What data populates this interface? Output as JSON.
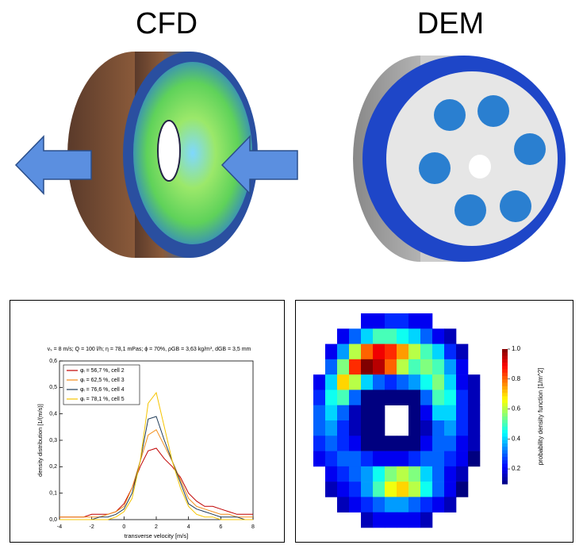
{
  "panels": [
    {
      "label": "CFD"
    },
    {
      "label": "DEM"
    }
  ],
  "chart_data": [
    {
      "type": "line",
      "title": "vₛ = 8 m/s; Q = 100 l/h; η = 78,1 mPas; ϕ = 70%, ρGB = 3,63 kg/m³, dGB = 3,5 mm",
      "x_label": "transverse velocity [m/s]",
      "y_label": "density distribution [1/(m/s)]",
      "x": [
        -4,
        -3.5,
        -3,
        -2.5,
        -2,
        -1.5,
        -1,
        -0.5,
        0,
        0.5,
        1,
        1.5,
        2,
        2.5,
        3,
        3.5,
        4,
        4.5,
        5,
        5.5,
        6,
        6.5,
        7,
        7.5,
        8
      ],
      "series": [
        {
          "name": "φᵢ = 56,7 %, cell 2",
          "color": "#c00000",
          "values": [
            0.01,
            0.01,
            0.01,
            0.01,
            0.02,
            0.02,
            0.02,
            0.03,
            0.06,
            0.12,
            0.2,
            0.26,
            0.27,
            0.23,
            0.2,
            0.16,
            0.1,
            0.07,
            0.05,
            0.05,
            0.04,
            0.03,
            0.02,
            0.02,
            0.02
          ]
        },
        {
          "name": "φᵢ = 62,5 %, cell 3",
          "color": "#f28e1c",
          "values": [
            0.01,
            0.01,
            0.01,
            0.01,
            0.01,
            0.01,
            0.02,
            0.03,
            0.05,
            0.12,
            0.22,
            0.32,
            0.34,
            0.28,
            0.22,
            0.15,
            0.08,
            0.05,
            0.04,
            0.03,
            0.02,
            0.02,
            0.01,
            0.01,
            0.01
          ]
        },
        {
          "name": "φᵢ = 76,6 %, cell 4",
          "color": "#1f3b57",
          "values": [
            0,
            0,
            0,
            0,
            0,
            0.01,
            0.01,
            0.02,
            0.04,
            0.1,
            0.22,
            0.38,
            0.39,
            0.3,
            0.22,
            0.14,
            0.06,
            0.04,
            0.03,
            0.02,
            0.01,
            0.01,
            0.01,
            0,
            0
          ]
        },
        {
          "name": "φᵢ = 78,1 %, cell 5",
          "color": "#f5c400",
          "values": [
            0,
            0,
            0,
            0,
            0,
            0,
            0,
            0.01,
            0.03,
            0.08,
            0.22,
            0.44,
            0.48,
            0.35,
            0.22,
            0.12,
            0.05,
            0.02,
            0.01,
            0.01,
            0,
            0,
            0,
            0,
            0
          ]
        }
      ],
      "xlim": [
        -4,
        8
      ],
      "xticks": [
        -4,
        -2,
        0,
        2,
        4,
        6,
        8
      ],
      "ylim": [
        0,
        0.6
      ],
      "yticks": [
        {
          "value": 0,
          "label": "0,0"
        },
        {
          "value": 0.1,
          "label": "0,1"
        },
        {
          "value": 0.2,
          "label": "0,2"
        },
        {
          "value": 0.3,
          "label": "0,3"
        },
        {
          "value": 0.4,
          "label": "0,4"
        },
        {
          "value": 0.5,
          "label": "0,5"
        },
        {
          "value": 0.6,
          "label": "0,6"
        }
      ],
      "legend": "upper-left"
    },
    {
      "type": "heatmap",
      "colorbar_label": "probability density function [1/m^2]",
      "colormap": "jet",
      "clim": [
        0.1,
        1.0
      ],
      "cticks": [
        0.2,
        0.4,
        0.6,
        0.8,
        {
          "value": 1,
          "label": "1.0"
        }
      ],
      "values": [
        [
          null,
          null,
          null,
          null,
          0.2,
          0.2,
          0.25,
          0.25,
          0.2,
          0.2,
          null,
          null,
          null,
          null
        ],
        [
          null,
          null,
          0.2,
          0.3,
          0.4,
          0.5,
          0.5,
          0.45,
          0.4,
          0.3,
          0.2,
          0.15,
          null,
          null
        ],
        [
          null,
          0.2,
          0.35,
          0.6,
          0.8,
          0.9,
          0.85,
          0.75,
          0.6,
          0.5,
          0.4,
          0.25,
          0.15,
          null
        ],
        [
          null,
          0.3,
          0.55,
          0.85,
          1.0,
          0.95,
          0.8,
          0.6,
          0.5,
          0.55,
          0.5,
          0.35,
          0.2,
          null
        ],
        [
          0.2,
          0.4,
          0.7,
          0.6,
          0.4,
          0.3,
          0.25,
          0.3,
          0.35,
          0.45,
          0.55,
          0.4,
          0.2,
          0.15
        ],
        [
          0.25,
          0.45,
          0.5,
          0.3,
          0.1,
          0.05,
          0.05,
          0.05,
          0.1,
          0.3,
          0.5,
          0.45,
          0.25,
          0.15
        ],
        [
          0.3,
          0.4,
          0.3,
          0.15,
          0.05,
          0.05,
          null,
          null,
          0.05,
          0.2,
          0.4,
          0.4,
          0.25,
          0.15
        ],
        [
          0.3,
          0.35,
          0.25,
          0.15,
          0.05,
          0.05,
          null,
          null,
          0.05,
          0.15,
          0.3,
          0.35,
          0.25,
          0.15
        ],
        [
          0.25,
          0.3,
          0.25,
          0.2,
          0.1,
          0.05,
          0.05,
          0.05,
          0.1,
          0.2,
          0.3,
          0.3,
          0.2,
          0.15
        ],
        [
          0.2,
          0.25,
          0.3,
          0.3,
          0.25,
          0.2,
          0.2,
          0.2,
          0.25,
          0.3,
          0.3,
          0.25,
          0.2,
          0.1
        ],
        [
          null,
          0.2,
          0.25,
          0.3,
          0.35,
          0.45,
          0.55,
          0.6,
          0.55,
          0.4,
          0.3,
          0.2,
          0.15,
          null
        ],
        [
          null,
          0.15,
          0.2,
          0.25,
          0.35,
          0.5,
          0.65,
          0.7,
          0.6,
          0.45,
          0.3,
          0.2,
          0.1,
          null
        ],
        [
          null,
          null,
          0.15,
          0.2,
          0.25,
          0.3,
          0.35,
          0.35,
          0.3,
          0.25,
          0.2,
          0.15,
          null,
          null
        ],
        [
          null,
          null,
          null,
          null,
          0.15,
          0.2,
          0.2,
          0.2,
          0.2,
          0.15,
          null,
          null,
          null,
          null
        ]
      ]
    }
  ]
}
